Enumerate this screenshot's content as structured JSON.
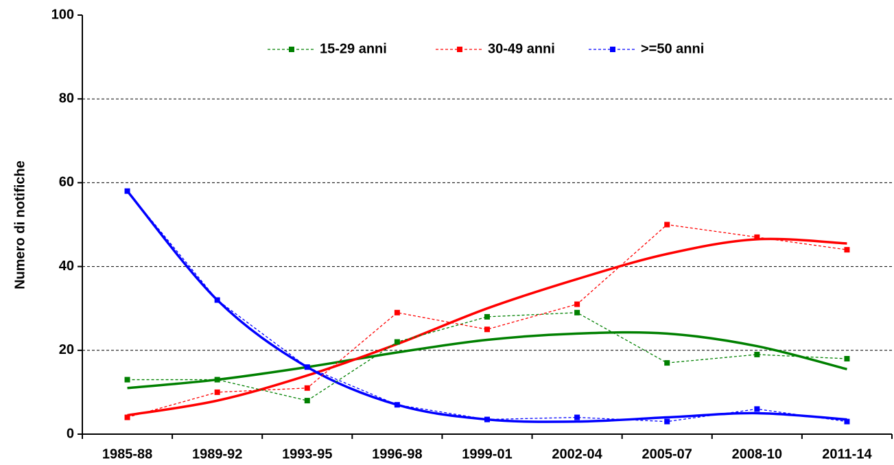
{
  "chart_data": {
    "type": "line",
    "y_label": "Numero di notifiche",
    "categories": [
      "1985-88",
      "1989-92",
      "1993-95",
      "1996-98",
      "1999-01",
      "2002-04",
      "2005-07",
      "2008-10",
      "2011-14"
    ],
    "series": [
      {
        "name": "15-29 anni",
        "color": "#008000",
        "values": [
          13,
          13,
          8,
          22,
          28,
          29,
          17,
          19,
          18
        ]
      },
      {
        "name": "30-49 anni",
        "color": "#ff0000",
        "values": [
          4,
          10,
          11,
          29,
          25,
          31,
          50,
          47,
          44
        ]
      },
      {
        "name": ">=50 anni",
        "color": "#0000ff",
        "values": [
          58,
          32,
          16,
          7,
          3.5,
          4,
          3,
          6,
          3
        ]
      }
    ],
    "trendlines": [
      {
        "color": "#008000",
        "values": [
          11,
          13,
          16,
          19.5,
          22.5,
          24,
          24,
          21,
          15.5
        ]
      },
      {
        "color": "#ff0000",
        "values": [
          4.5,
          8,
          14,
          21.5,
          30,
          37,
          43,
          46.5,
          45.5
        ]
      },
      {
        "color": "#0000ff",
        "values": [
          58,
          32,
          16,
          7,
          3.5,
          3,
          4,
          5,
          3.5
        ]
      }
    ],
    "ylim": [
      0,
      100
    ],
    "yticks": [
      0,
      20,
      40,
      60,
      80,
      100
    ],
    "grid": true
  }
}
